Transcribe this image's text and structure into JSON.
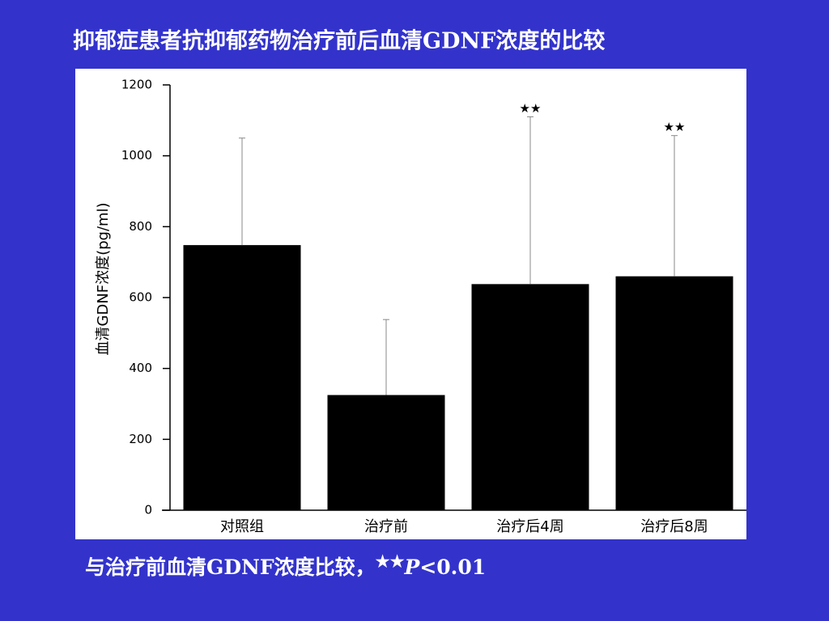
{
  "chart_data": {
    "type": "bar",
    "title": "抑郁症患者抗抑郁药物治疗前后血清GDNF浓度的比较",
    "ylabel": "血清GDNF浓度(pg/ml)",
    "categories": [
      "对照组",
      "治疗前",
      "治疗后4周",
      "治疗后8周"
    ],
    "values": [
      748,
      325,
      638,
      660
    ],
    "errors": [
      302,
      213,
      472,
      397
    ],
    "color": "#000000",
    "annotations": [
      null,
      null,
      "★★",
      "★★"
    ],
    "ylim": [
      0,
      1200
    ],
    "yticks": [
      0,
      200,
      400,
      600,
      800,
      1000,
      1200
    ],
    "footnote": {
      "text": "与治疗前血清GDNF浓度比较，",
      "stars": "★★",
      "p_symbol": "P",
      "p_value": "<0.01"
    }
  }
}
